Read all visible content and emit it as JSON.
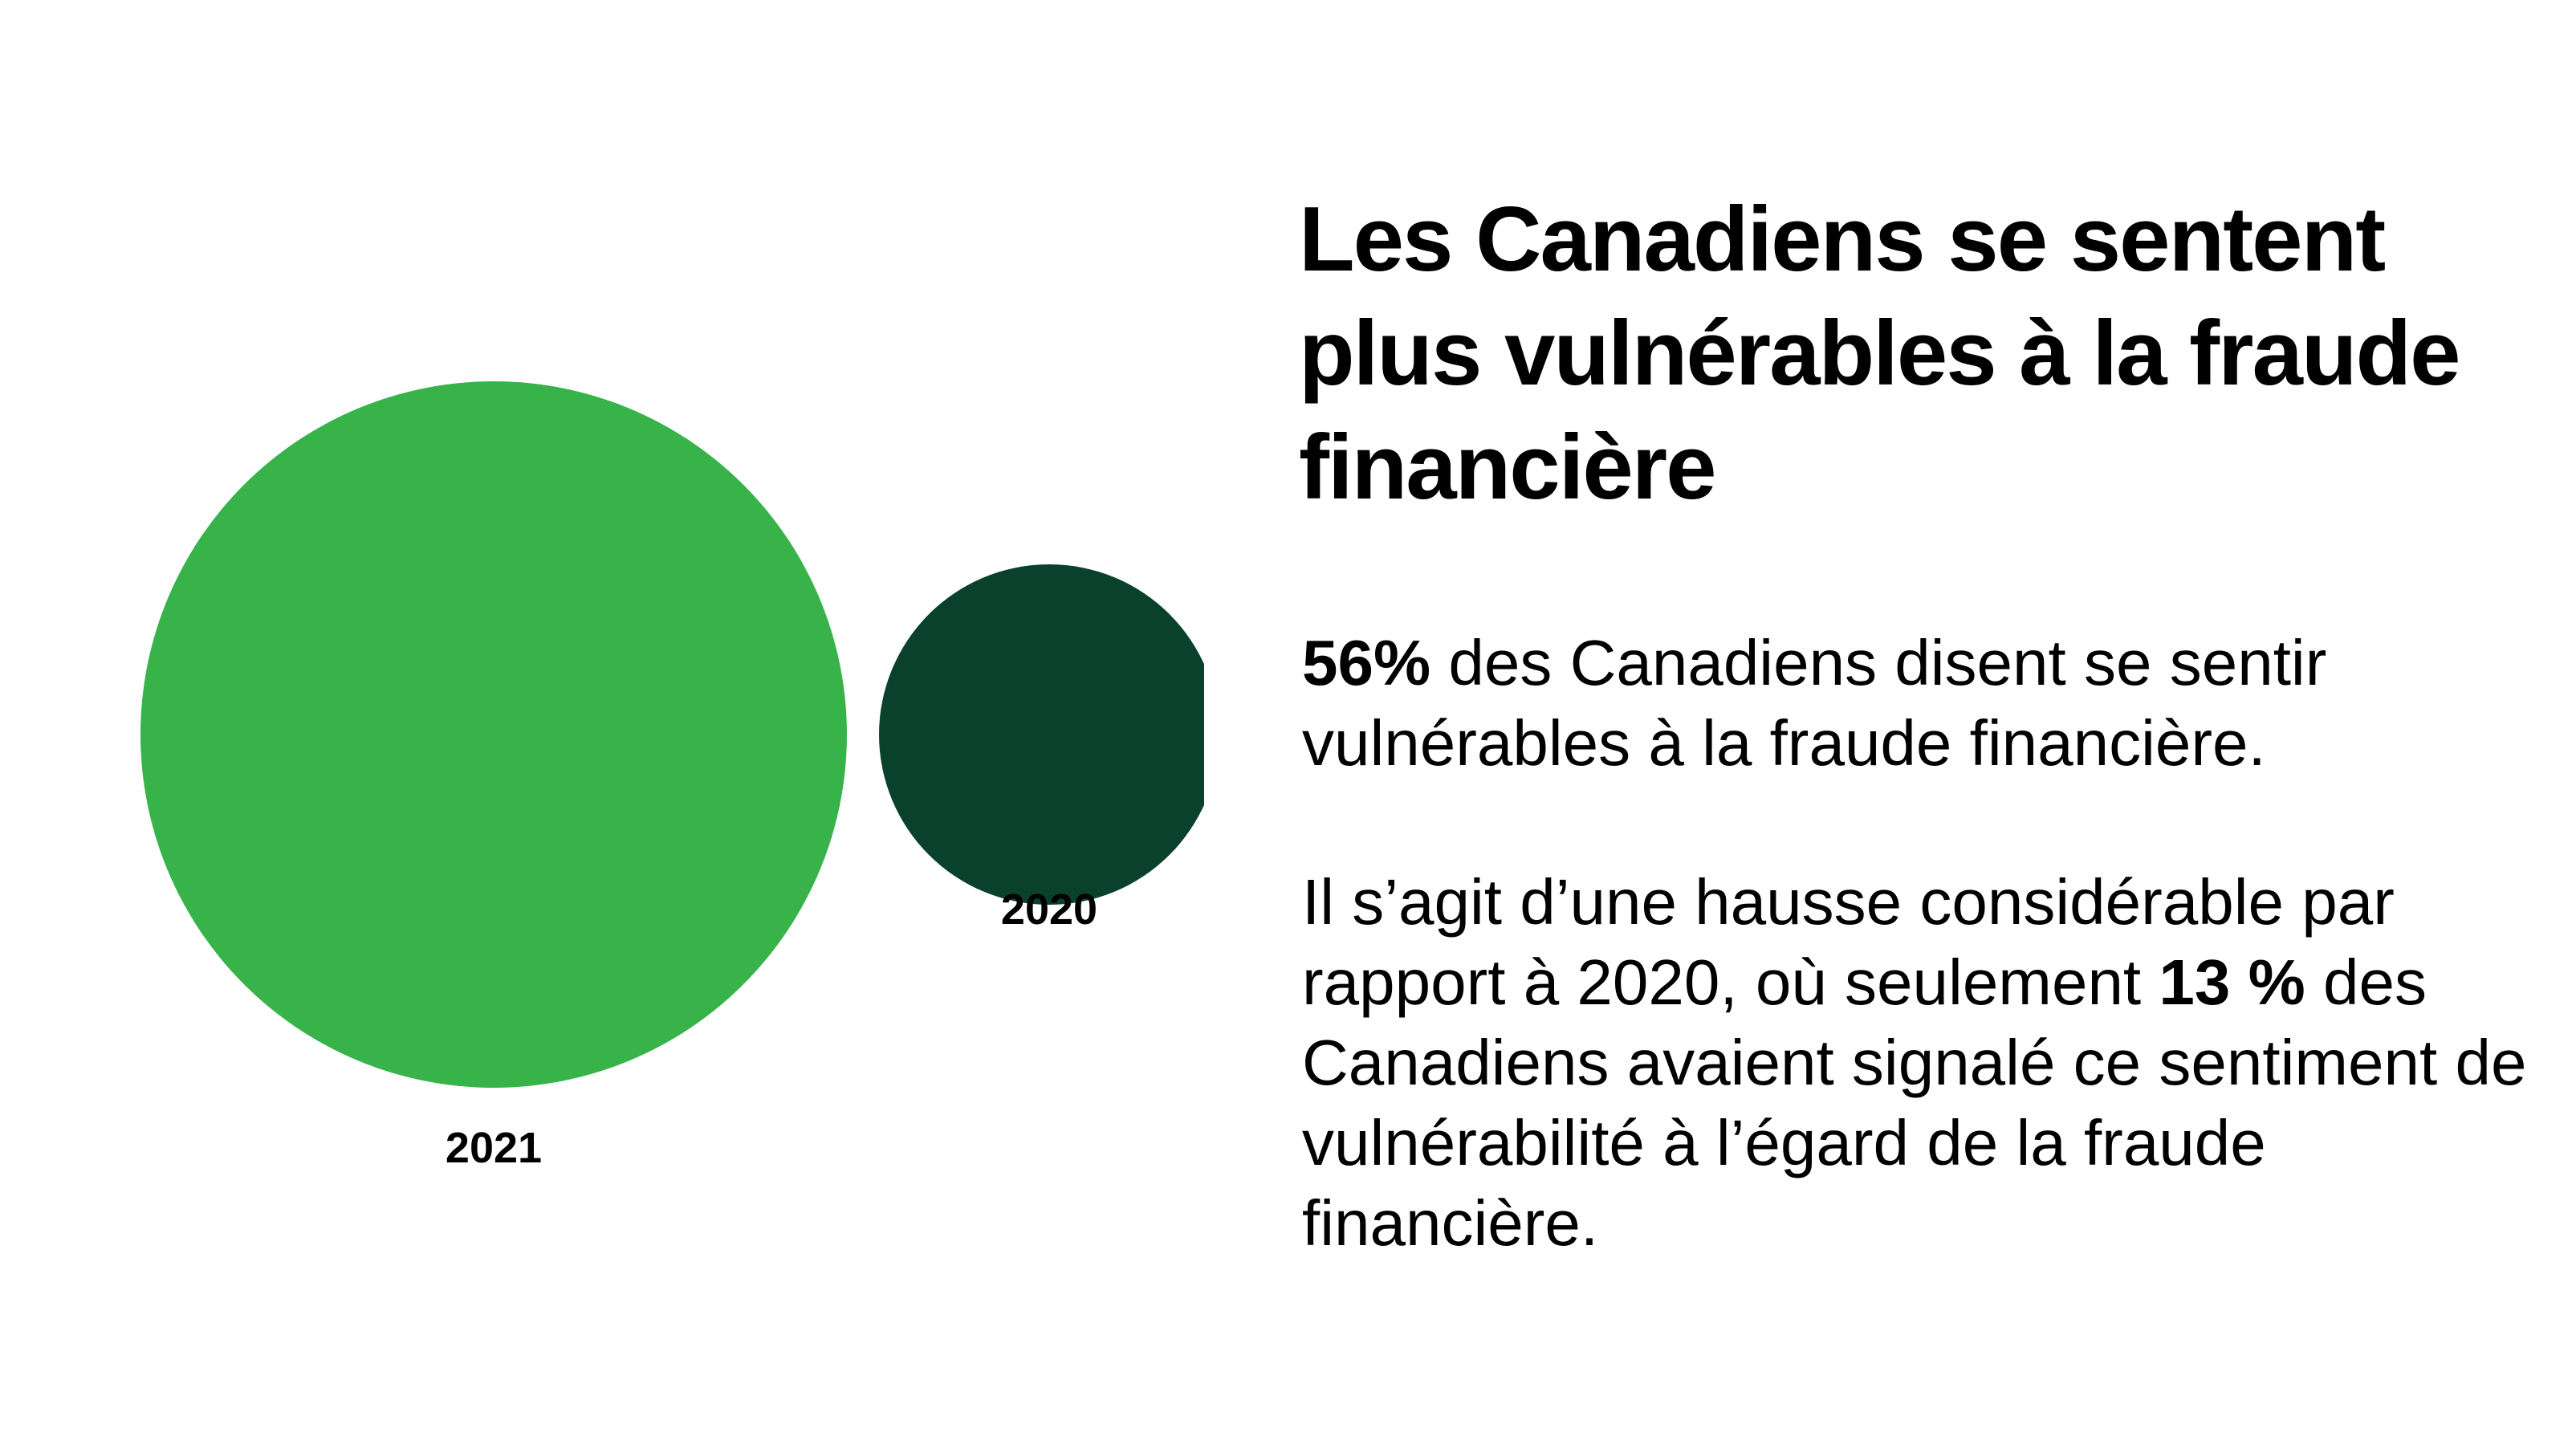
{
  "colors": {
    "year_2021": "#37b34a",
    "year_2020": "#0a412d",
    "text": "#000000",
    "background": "#ffffff"
  },
  "chart_data": {
    "type": "bubble",
    "series": [
      {
        "name": "2021",
        "value": 56,
        "unit": "%",
        "color": "#37b34a"
      },
      {
        "name": "2020",
        "value": 13,
        "unit": "%",
        "color": "#0a412d"
      }
    ]
  },
  "title": "Les Canadiens se sentent plus vulnérables à la fraude financière",
  "paragraph1": {
    "highlight": "56%",
    "text": " des Canadiens disent se sentir vulnérables à la fraude financière."
  },
  "paragraph2": {
    "before": "Il s’agit d’une hausse considérable par rapport à 2020, où seulement ",
    "highlight": "13  %",
    "after": " des Canadiens avaient signalé ce sentiment de vulnérabilité à l’égard de la fraude financière."
  }
}
